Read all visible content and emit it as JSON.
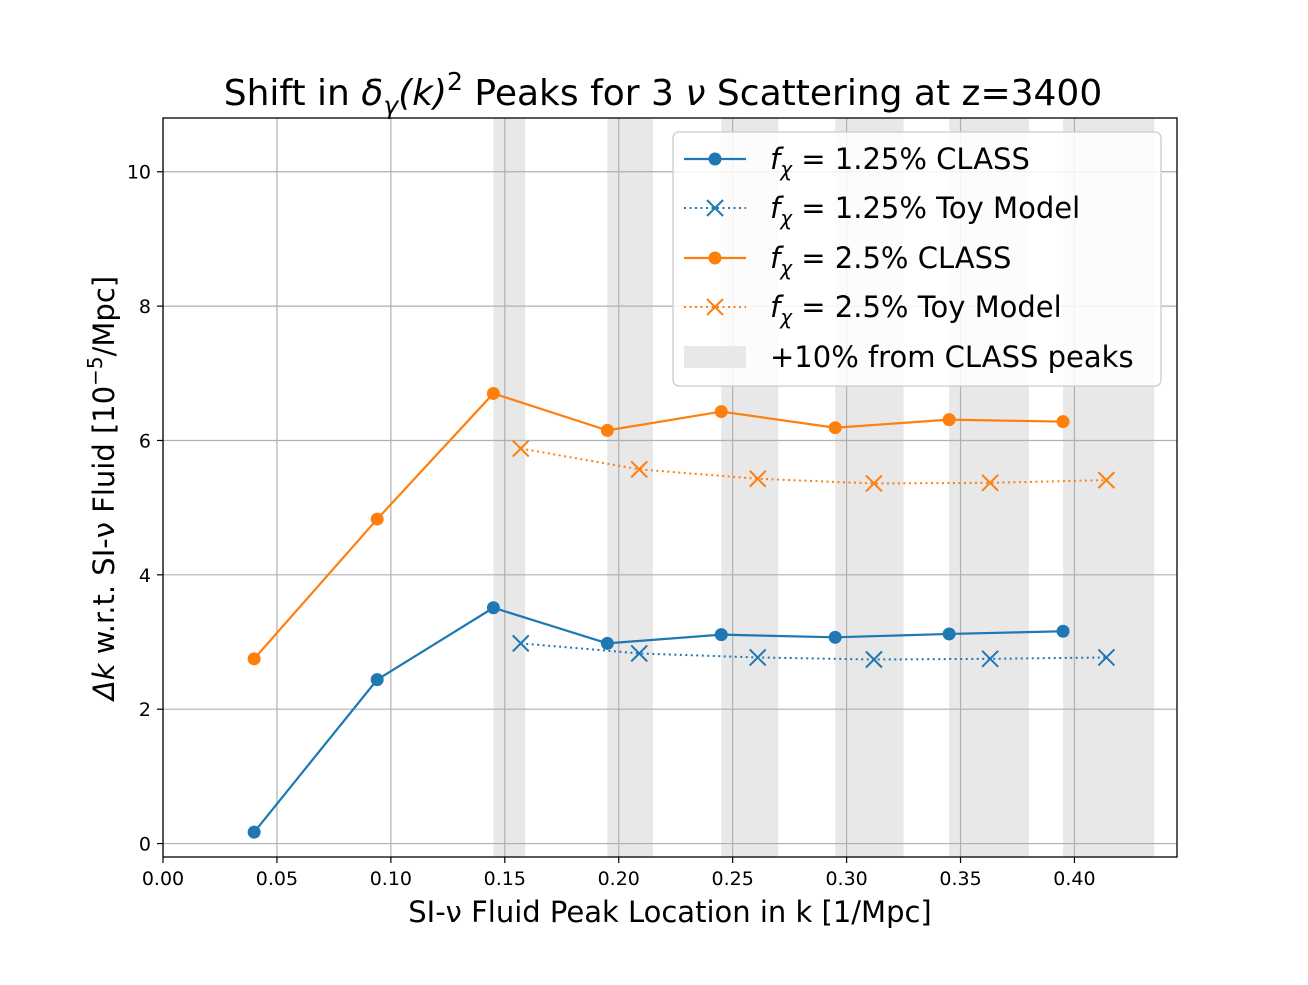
{
  "chart_data": {
    "type": "line",
    "title_parts": {
      "pre": "Shift in ",
      "delta": "δ",
      "gamma_sub": "γ",
      "k_paren": "(k)",
      "sq": "2",
      "mid": " Peaks for 3 ",
      "nu": "ν",
      "post": " Scattering at z=3400"
    },
    "xlabel": "SI-ν Fluid Peak Location in k [1/Mpc]",
    "ylabel_parts": {
      "delta_k": "Δk",
      "rest": " w.r.t. SI-ν Fluid [10",
      "exp": "−5",
      "unit": "/Mpc]"
    },
    "xlim": [
      0.0,
      0.445
    ],
    "ylim": [
      -0.2,
      10.8
    ],
    "xticks": [
      "0.00",
      "0.05",
      "0.10",
      "0.15",
      "0.20",
      "0.25",
      "0.30",
      "0.35",
      "0.40"
    ],
    "yticks": [
      "0",
      "2",
      "4",
      "6",
      "8",
      "10"
    ],
    "grid": true,
    "legend_position": "upper right",
    "colors": {
      "blue": "#1f77b4",
      "orange": "#ff7f0e",
      "band": "#e8e8e8"
    },
    "series": [
      {
        "name_prefix": "f",
        "name_sub": "χ",
        "name_rest": " = 1.25% CLASS",
        "color": "#1f77b4",
        "style": "solid",
        "marker": "circle",
        "x": [
          0.04,
          0.094,
          0.145,
          0.195,
          0.245,
          0.295,
          0.345,
          0.395
        ],
        "y": [
          0.17,
          2.44,
          3.51,
          2.98,
          3.11,
          3.07,
          3.12,
          3.16
        ]
      },
      {
        "name_prefix": "f",
        "name_sub": "χ",
        "name_rest": " = 1.25% Toy Model",
        "color": "#1f77b4",
        "style": "dotted",
        "marker": "x",
        "x": [
          0.157,
          0.209,
          0.261,
          0.312,
          0.363,
          0.414
        ],
        "y": [
          2.98,
          2.83,
          2.77,
          2.74,
          2.75,
          2.77
        ]
      },
      {
        "name_prefix": "f",
        "name_sub": "χ",
        "name_rest": " = 2.5% CLASS",
        "color": "#ff7f0e",
        "style": "solid",
        "marker": "circle",
        "x": [
          0.04,
          0.094,
          0.145,
          0.195,
          0.245,
          0.295,
          0.345,
          0.395
        ],
        "y": [
          2.75,
          4.83,
          6.7,
          6.15,
          6.43,
          6.19,
          6.31,
          6.28
        ]
      },
      {
        "name_prefix": "f",
        "name_sub": "χ",
        "name_rest": " = 2.5% Toy Model",
        "color": "#ff7f0e",
        "style": "dotted",
        "marker": "x",
        "x": [
          0.157,
          0.209,
          0.261,
          0.312,
          0.363,
          0.414
        ],
        "y": [
          5.88,
          5.57,
          5.43,
          5.36,
          5.37,
          5.41
        ]
      }
    ],
    "bands": {
      "name": "+10% from CLASS peaks",
      "ranges": [
        [
          0.145,
          0.159
        ],
        [
          0.195,
          0.215
        ],
        [
          0.245,
          0.27
        ],
        [
          0.295,
          0.325
        ],
        [
          0.345,
          0.38
        ],
        [
          0.395,
          0.435
        ]
      ]
    }
  }
}
